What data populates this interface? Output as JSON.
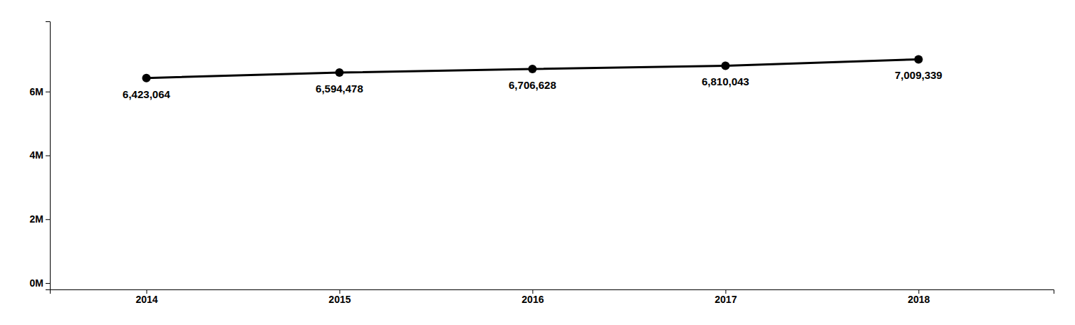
{
  "chart_data": {
    "type": "line",
    "x": [
      2014,
      2015,
      2016,
      2017,
      2018
    ],
    "values": [
      6423064,
      6594478,
      6706628,
      6810043,
      7009339
    ],
    "value_labels": [
      "6,423,064",
      "6,594,478",
      "6,706,628",
      "6,810,043",
      "7,009,339"
    ],
    "data_labels": true,
    "color": "#000000",
    "marker": "circle",
    "xlim": [
      2013.5,
      2018.7
    ],
    "xticks": [
      2014,
      2015,
      2016,
      2017,
      2018
    ],
    "ylim": [
      -200000,
      8200000
    ],
    "yticks": [
      {
        "value": 0,
        "label": "0M"
      },
      {
        "value": 2000000,
        "label": "2M"
      },
      {
        "value": 4000000,
        "label": "4M"
      },
      {
        "value": 6000000,
        "label": "6M"
      }
    ],
    "grid": false
  }
}
